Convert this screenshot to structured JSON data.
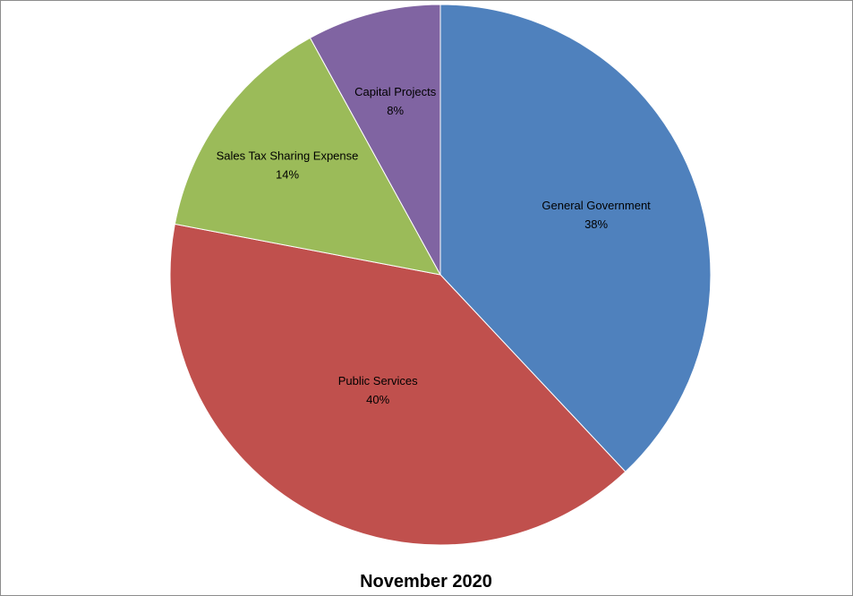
{
  "chart_data": {
    "type": "pie",
    "title": "November 2020",
    "start_angle_deg": 0,
    "direction": "clockwise",
    "slices": [
      {
        "label": "General Government",
        "value": 38,
        "value_label": "38%",
        "color": "#4F81BD"
      },
      {
        "label": "Public Services",
        "value": 40,
        "value_label": "40%",
        "color": "#C0504D"
      },
      {
        "label": "Sales Tax Sharing Expense",
        "value": 14,
        "value_label": "14%",
        "color": "#9BBB59"
      },
      {
        "label": "Capital Projects",
        "value": 8,
        "value_label": "8%",
        "color": "#8064A2"
      }
    ]
  }
}
